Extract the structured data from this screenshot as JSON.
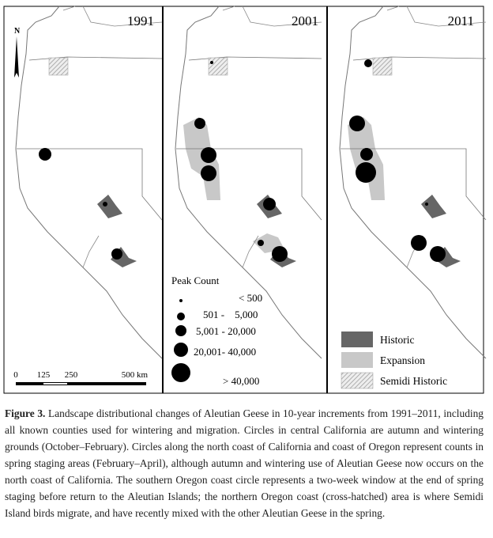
{
  "figure": {
    "panels": [
      "1991",
      "2001",
      "2011"
    ],
    "north": "N",
    "scale": [
      "0",
      "125",
      "250",
      "500 km"
    ],
    "peak_count": {
      "title": "Peak Count",
      "classes": [
        "< 500",
        "501 -    5,000",
        "5,001 - 20,000",
        "20,001- 40,000",
        "> 40,000"
      ]
    },
    "areas": [
      "Historic",
      "Expansion",
      "Semidi Historic"
    ]
  },
  "caption": {
    "label": "Figure 3.",
    "text": " Landscape distributional changes of Aleutian Geese in 10-year increments from 1991–2011, including all known counties used for wintering and migration. Circles in central California are autumn and wintering grounds (October–February). Circles along the north coast of California and coast of Oregon represent counts in spring staging areas (February–April), although autumn and wintering use of Aleutian Geese now occurs on the north coast of California. The southern Oregon coast circle represents a two-week window at the end of spring staging before return to the Aleutian Islands; the northern Oregon coast (cross-hatched) area is where Semidi Island birds migrate, and have recently mixed with the other Aleutian Geese in the spring."
  }
}
